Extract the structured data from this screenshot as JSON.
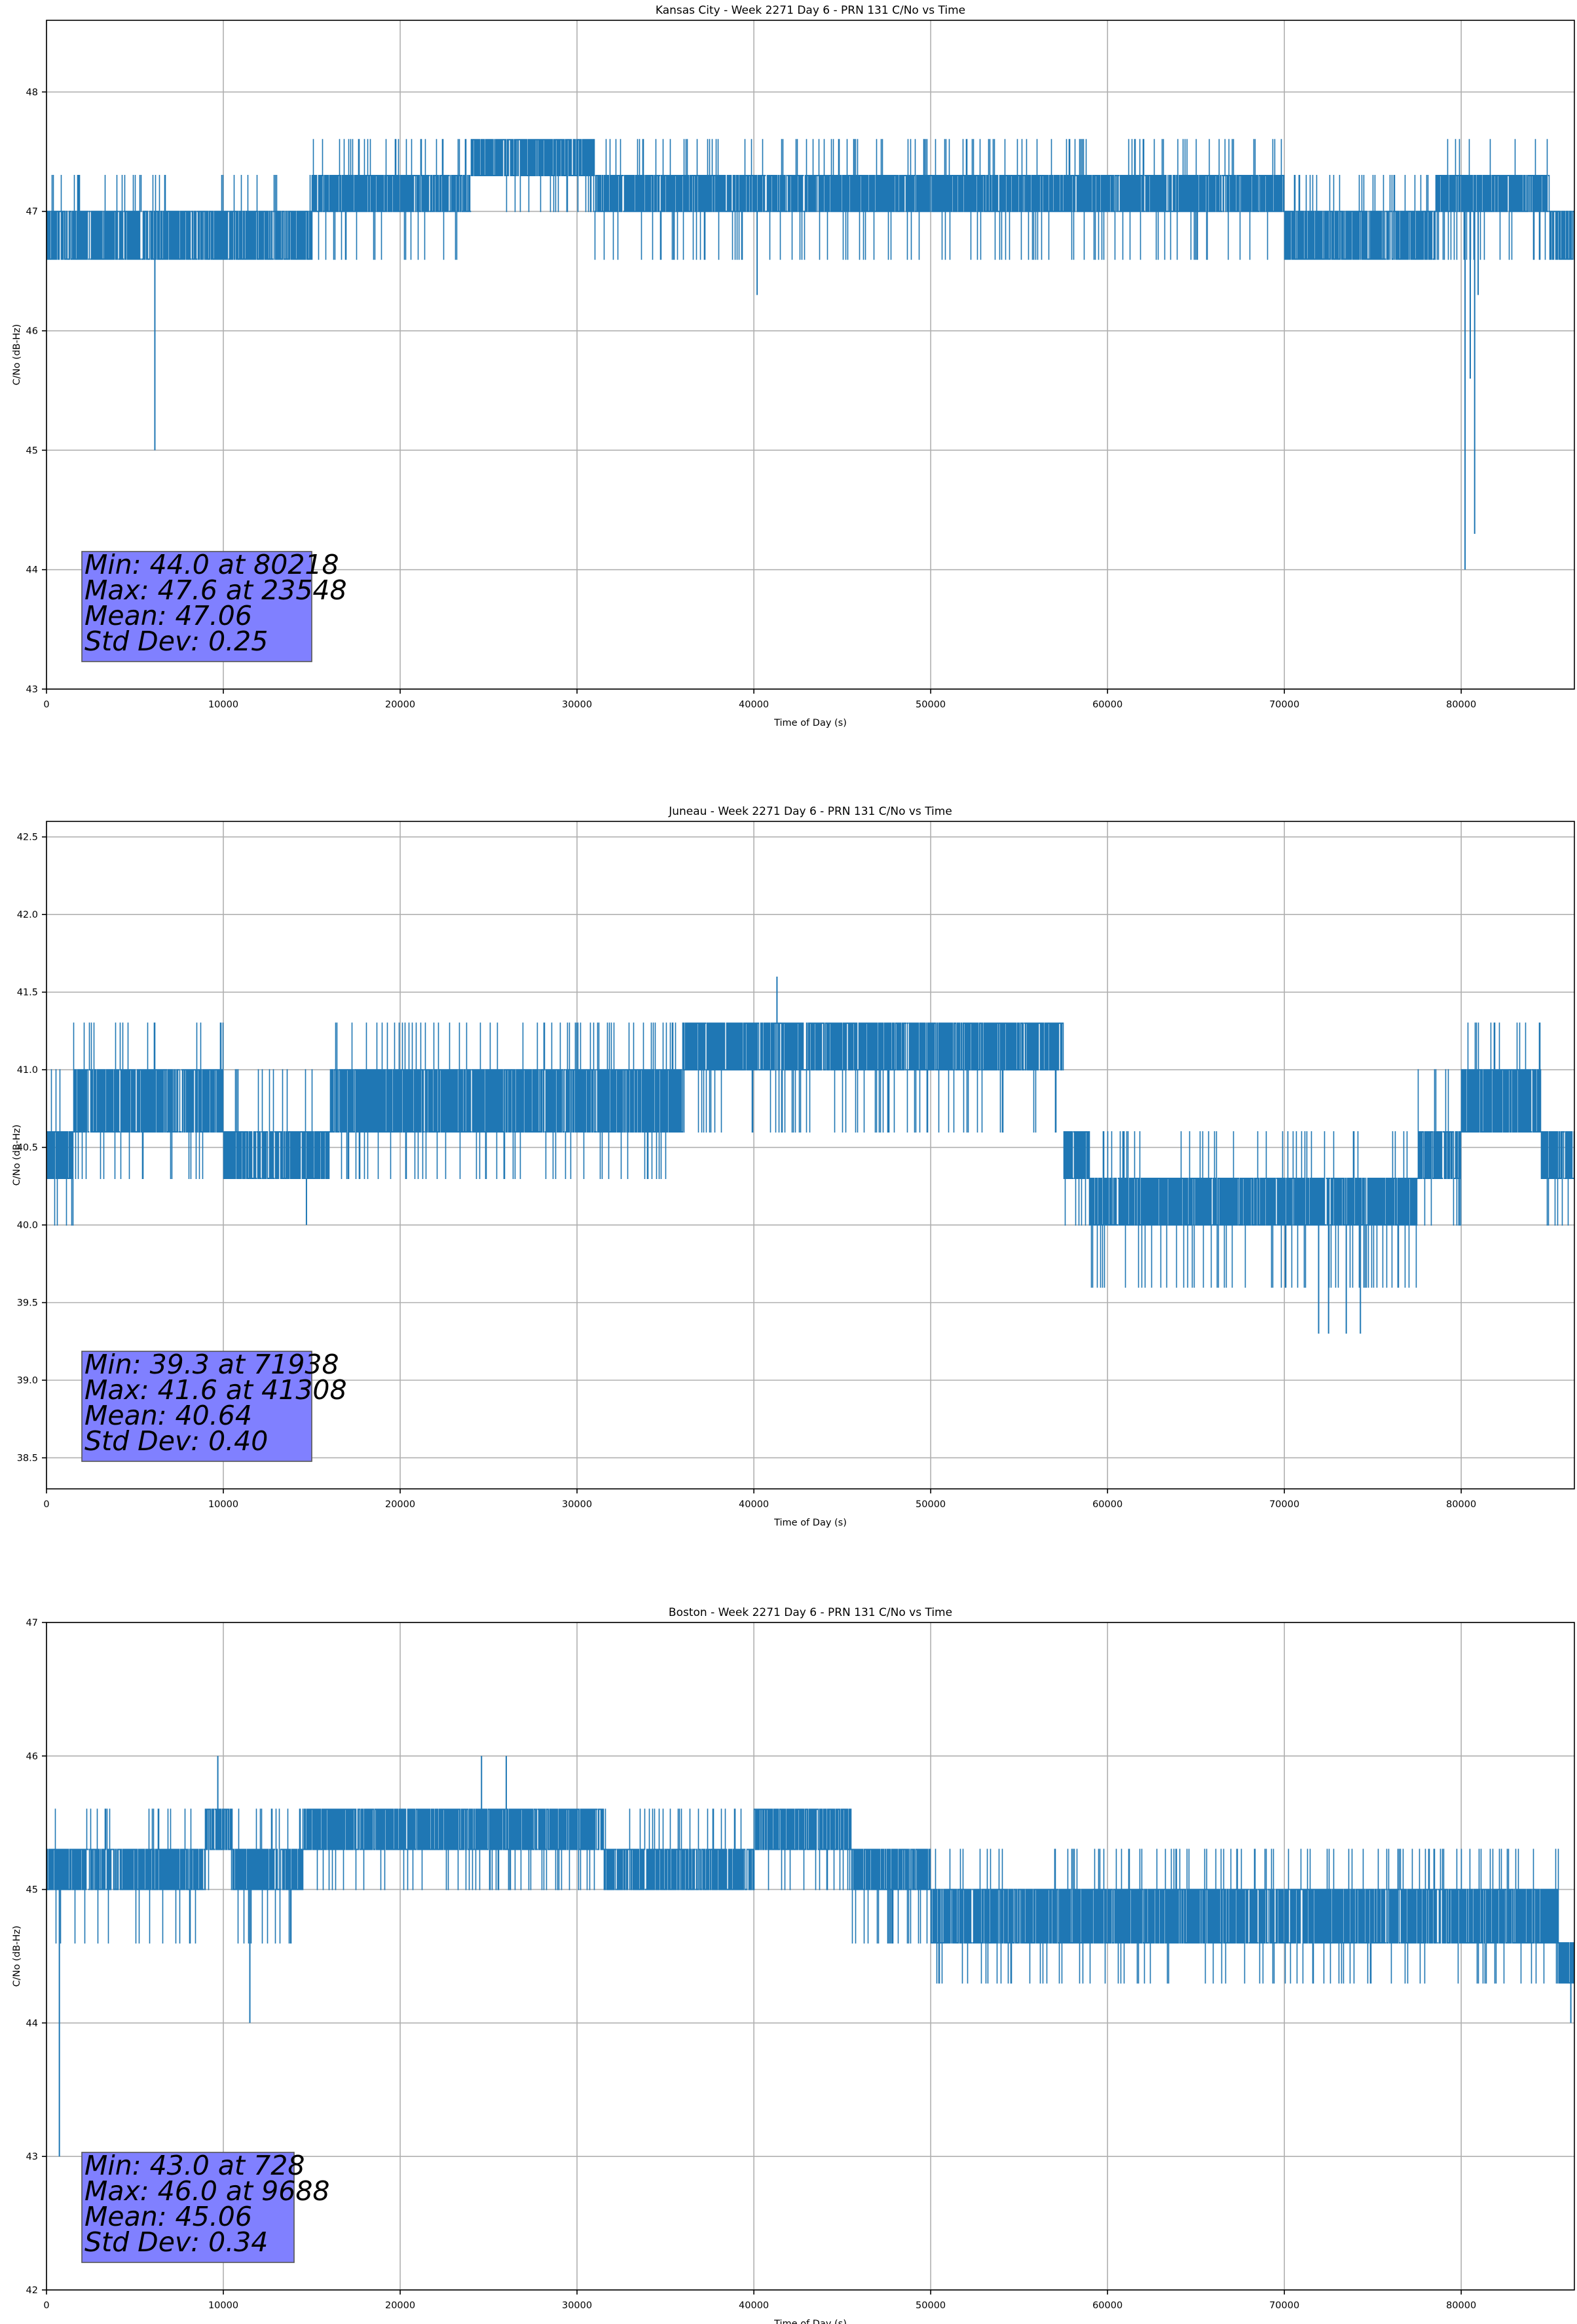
{
  "figure": {
    "background": "#ffffff"
  },
  "style": {
    "line_color": "#1f77b4",
    "grid_color": "#b0b0b0",
    "stats_box_fill": "#8080ff",
    "stats_box_edge": "#555555"
  },
  "chart_data": [
    {
      "type": "line",
      "title": "Kansas City - Week 2271 Day 6 - PRN 131 C/No vs Time",
      "xlabel": "Time of Day (s)",
      "ylabel": "C/No (dB-Hz)",
      "xlim": [
        0,
        86400
      ],
      "ylim": [
        43,
        48.6
      ],
      "xticks": [
        0,
        10000,
        20000,
        30000,
        40000,
        50000,
        60000,
        70000,
        80000
      ],
      "yticks": [
        43,
        44,
        45,
        46,
        47,
        48
      ],
      "ytick_labels": [
        "43",
        "44",
        "45",
        "46",
        "47",
        "48"
      ],
      "grid": true,
      "stats": [
        "Min: 44.0 at 80218",
        "Max: 47.6 at 23548",
        "Mean: 47.06",
        "Std Dev: 0.25"
      ],
      "levels": [
        46.6,
        47.0,
        47.3,
        47.6
      ],
      "regimes": [
        {
          "x": [
            0,
            15000
          ],
          "band": [
            46.6,
            47.0
          ],
          "up": 47.3,
          "down": 46.3
        },
        {
          "x": [
            15000,
            24000
          ],
          "band": [
            47.0,
            47.3
          ],
          "up": 47.6,
          "down": 46.6
        },
        {
          "x": [
            24000,
            31000
          ],
          "band": [
            47.3,
            47.6
          ],
          "up": 47.6,
          "down": 47.0
        },
        {
          "x": [
            31000,
            70000
          ],
          "band": [
            47.0,
            47.3
          ],
          "up": 47.6,
          "down": 46.6
        },
        {
          "x": [
            70000,
            78500
          ],
          "band": [
            46.6,
            47.0
          ],
          "up": 47.3,
          "down": 46.3
        },
        {
          "x": [
            78500,
            85000
          ],
          "band": [
            47.0,
            47.3
          ],
          "up": 47.6,
          "down": 46.6
        },
        {
          "x": [
            85000,
            86400
          ],
          "band": [
            46.6,
            47.0
          ],
          "up": 47.0,
          "down": 46.3
        }
      ],
      "spikes": [
        {
          "x": 6128,
          "y": 45.0
        },
        {
          "x": 40185,
          "y": 46.3
        },
        {
          "x": 80218,
          "y": 44.0
        },
        {
          "x": 80512,
          "y": 45.6
        },
        {
          "x": 80760,
          "y": 44.3
        },
        {
          "x": 80958,
          "y": 46.3
        }
      ]
    },
    {
      "type": "line",
      "title": "Juneau - Week 2271 Day 6 - PRN 131 C/No vs Time",
      "xlabel": "Time of Day (s)",
      "ylabel": "C/No (dB-Hz)",
      "xlim": [
        0,
        86400
      ],
      "ylim": [
        38.3,
        42.6
      ],
      "xticks": [
        0,
        10000,
        20000,
        30000,
        40000,
        50000,
        60000,
        70000,
        80000
      ],
      "yticks": [
        38.5,
        39.0,
        39.5,
        40.0,
        40.5,
        41.0,
        41.5,
        42.0,
        42.5
      ],
      "ytick_labels": [
        "38.5",
        "39.0",
        "39.5",
        "40.0",
        "40.5",
        "41.0",
        "41.5",
        "42.0",
        "42.5"
      ],
      "grid": true,
      "stats": [
        "Min: 39.3 at 71938",
        "Max: 41.6 at 41308",
        "Mean: 40.64",
        "Std Dev: 0.40"
      ],
      "levels": [
        39.3,
        39.6,
        40.0,
        40.3,
        40.6,
        41.0,
        41.3,
        41.6
      ],
      "regimes": [
        {
          "x": [
            0,
            1500
          ],
          "band": [
            40.3,
            40.6
          ],
          "up": 41.0,
          "down": 40.0
        },
        {
          "x": [
            1500,
            10000
          ],
          "band": [
            40.6,
            41.0
          ],
          "up": 41.3,
          "down": 40.3
        },
        {
          "x": [
            10000,
            16000
          ],
          "band": [
            40.3,
            40.6
          ],
          "up": 41.0,
          "down": 40.3
        },
        {
          "x": [
            16000,
            36000
          ],
          "band": [
            40.6,
            41.0
          ],
          "up": 41.3,
          "down": 40.3
        },
        {
          "x": [
            36000,
            57500
          ],
          "band": [
            41.0,
            41.3
          ],
          "up": 41.3,
          "down": 40.6
        },
        {
          "x": [
            57500,
            59000
          ],
          "band": [
            40.3,
            40.6
          ],
          "up": 40.6,
          "down": 40.0
        },
        {
          "x": [
            59000,
            77500
          ],
          "band": [
            40.0,
            40.3
          ],
          "up": 40.6,
          "down": 39.6
        },
        {
          "x": [
            77500,
            80000
          ],
          "band": [
            40.3,
            40.6
          ],
          "up": 41.0,
          "down": 40.0
        },
        {
          "x": [
            80000,
            84500
          ],
          "band": [
            40.6,
            41.0
          ],
          "up": 41.3,
          "down": 40.6
        },
        {
          "x": [
            84500,
            86400
          ],
          "band": [
            40.3,
            40.6
          ],
          "up": 40.6,
          "down": 40.0
        }
      ],
      "spikes": [
        {
          "x": 41308,
          "y": 41.6
        },
        {
          "x": 14700,
          "y": 40.0
        },
        {
          "x": 72500,
          "y": 39.3
        },
        {
          "x": 73500,
          "y": 39.3
        },
        {
          "x": 74300,
          "y": 39.3
        },
        {
          "x": 71938,
          "y": 39.3
        }
      ]
    },
    {
      "type": "line",
      "title": "Boston - Week 2271 Day 6 - PRN 131 C/No vs Time",
      "xlabel": "Time of Day (s)",
      "ylabel": "C/No (dB-Hz)",
      "xlim": [
        0,
        86400
      ],
      "ylim": [
        42,
        47
      ],
      "xticks": [
        0,
        10000,
        20000,
        30000,
        40000,
        50000,
        60000,
        70000,
        80000
      ],
      "yticks": [
        42,
        43,
        44,
        45,
        46,
        47
      ],
      "ytick_labels": [
        "42",
        "43",
        "44",
        "45",
        "46",
        "47"
      ],
      "grid": true,
      "stats": [
        "Min: 43.0 at 728",
        "Max: 46.0 at 9688",
        "Mean: 45.06",
        "Std Dev: 0.34"
      ],
      "levels": [
        44.3,
        44.6,
        45.0,
        45.3,
        45.6,
        46.0
      ],
      "regimes": [
        {
          "x": [
            0,
            9000
          ],
          "band": [
            45.0,
            45.3
          ],
          "up": 45.6,
          "down": 44.6
        },
        {
          "x": [
            9000,
            10500
          ],
          "band": [
            45.3,
            45.6
          ],
          "up": 45.6,
          "down": 45.0
        },
        {
          "x": [
            10500,
            14500
          ],
          "band": [
            45.0,
            45.3
          ],
          "up": 45.6,
          "down": 44.6
        },
        {
          "x": [
            14500,
            31500
          ],
          "band": [
            45.3,
            45.6
          ],
          "up": 45.6,
          "down": 45.0
        },
        {
          "x": [
            31500,
            40000
          ],
          "band": [
            45.0,
            45.3
          ],
          "up": 45.6,
          "down": 45.0
        },
        {
          "x": [
            40000,
            45500
          ],
          "band": [
            45.3,
            45.6
          ],
          "up": 45.6,
          "down": 45.0
        },
        {
          "x": [
            45500,
            50000
          ],
          "band": [
            45.0,
            45.3
          ],
          "up": 45.3,
          "down": 44.6
        },
        {
          "x": [
            50000,
            85500
          ],
          "band": [
            44.6,
            45.0
          ],
          "up": 45.3,
          "down": 44.3
        },
        {
          "x": [
            85500,
            86400
          ],
          "band": [
            44.3,
            44.6
          ],
          "up": 44.6,
          "down": 44.3
        }
      ],
      "spikes": [
        {
          "x": 728,
          "y": 43.0
        },
        {
          "x": 9688,
          "y": 46.0
        },
        {
          "x": 24600,
          "y": 46.0
        },
        {
          "x": 26000,
          "y": 46.0
        },
        {
          "x": 11500,
          "y": 44.0
        },
        {
          "x": 86200,
          "y": 44.0
        }
      ]
    }
  ]
}
